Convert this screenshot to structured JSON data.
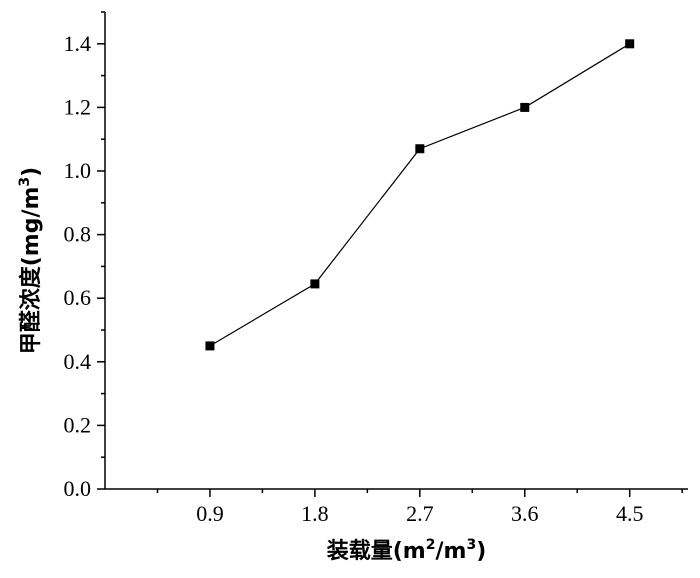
{
  "chart_data": {
    "type": "line",
    "title": "",
    "xlabel_parts": {
      "main": "装载量(m",
      "sup1": "2",
      "mid": "/m",
      "sup2": "3",
      "end": ")"
    },
    "ylabel_parts": {
      "main": "甲醛浓度(mg/m",
      "sup": "3",
      "end": ")"
    },
    "x": [
      0.9,
      1.8,
      2.7,
      3.6,
      4.5
    ],
    "x_tick_labels": [
      "0.9",
      "1.8",
      "2.7",
      "3.6",
      "4.5"
    ],
    "series": [
      {
        "values": [
          0.45,
          0.645,
          1.07,
          1.2,
          1.4
        ]
      }
    ],
    "xlim": [
      0.0,
      5.0
    ],
    "ylim": [
      0.0,
      1.5
    ],
    "y_ticks": [
      0.0,
      0.2,
      0.4,
      0.6,
      0.8,
      1.0,
      1.2,
      1.4
    ],
    "y_tick_labels": [
      "0.0",
      "0.2",
      "0.4",
      "0.6",
      "0.8",
      "1.0",
      "1.2",
      "1.4"
    ],
    "grid": false,
    "marker": "square",
    "colors": {
      "line": "#000000",
      "marker": "#000000"
    }
  }
}
